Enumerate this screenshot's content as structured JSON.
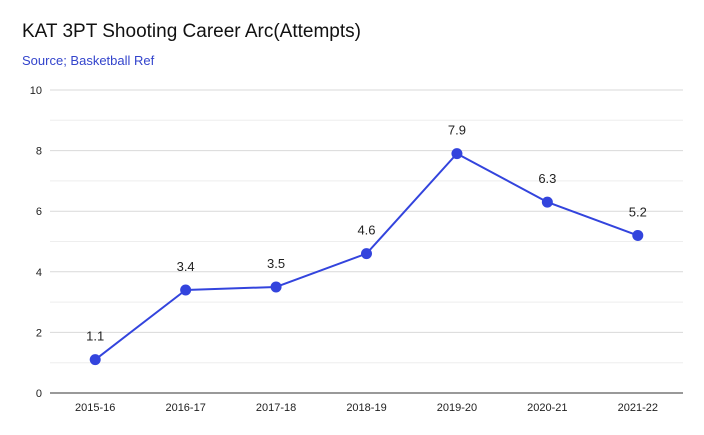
{
  "chart_data": {
    "type": "line",
    "title": "KAT 3PT Shooting Career Arc(Attempts)",
    "subtitle": "Source; Basketball Ref",
    "xlabel": "",
    "ylabel": "",
    "categories": [
      "2015-16",
      "2016-17",
      "2017-18",
      "2018-19",
      "2019-20",
      "2020-21",
      "2021-22"
    ],
    "series": [
      {
        "values": [
          1.1,
          3.4,
          3.5,
          4.6,
          7.9,
          6.3,
          5.2
        ],
        "data_labels": [
          "1.1",
          "3.4",
          "3.5",
          "4.6",
          "7.9",
          "6.3",
          "5.2"
        ]
      }
    ],
    "ylim": [
      0,
      10
    ],
    "yticks": [
      "0",
      "2",
      "4",
      "6",
      "8",
      "10"
    ],
    "grid": true,
    "legend": "none"
  },
  "colors": {
    "line": "#3344dd",
    "subtitle": "#3344cc",
    "grid": "#d9d9d9",
    "axis": "#333333"
  }
}
